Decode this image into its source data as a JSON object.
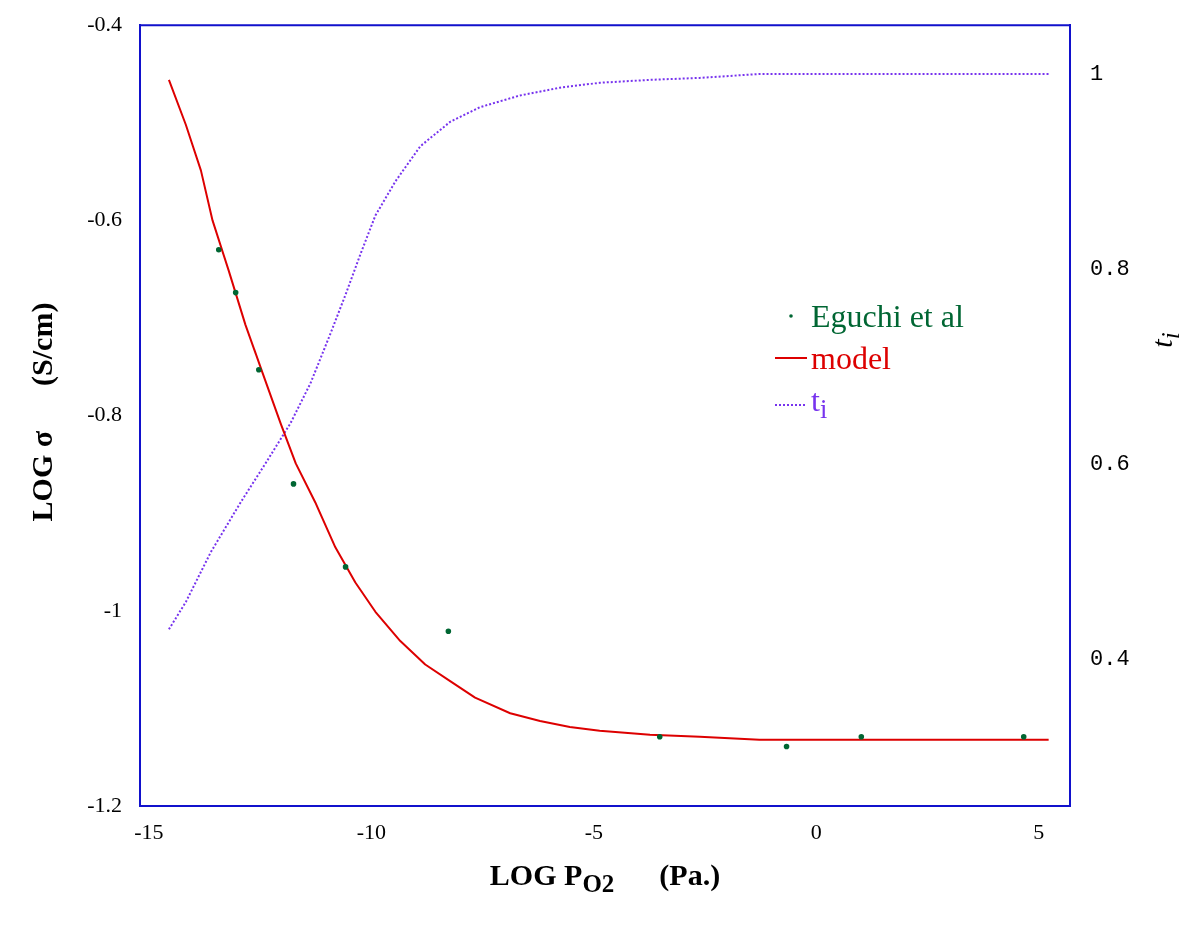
{
  "chart_data": {
    "type": "line",
    "xlabel": "LOG P$_{O2}$      (Pa.)",
    "ylabel": "LOG σ      (S/cm)",
    "y2label": "t$_{i}$",
    "xlim": [
      -15.2,
      5.7
    ],
    "xticks": [
      -15,
      -10,
      -5,
      0,
      5
    ],
    "ylim": [
      -1.2,
      -0.4
    ],
    "yticks": [
      -1.2,
      -1,
      -0.8,
      -0.6,
      -0.4
    ],
    "y2lim": [
      0.25,
      1.05
    ],
    "y2ticks": [
      0.4,
      0.6,
      0.8,
      1
    ],
    "grid": false,
    "legend": "right",
    "series": [
      {
        "name": "Eguchi et al",
        "type": "scatter",
        "marker": "circle",
        "color": "#006633",
        "x": [
          -13.43,
          -13.05,
          -12.53,
          -11.75,
          -10.58,
          -8.27,
          -3.52,
          -0.67,
          1.01,
          4.66
        ],
        "values": [
          -0.63,
          -0.674,
          -0.753,
          -0.87,
          -0.955,
          -1.021,
          -1.129,
          -1.139,
          -1.129,
          -1.129
        ]
      },
      {
        "name": "model",
        "type": "line",
        "line_style": "solid",
        "color": "#dd0000",
        "x": [
          -14.55,
          -14.17,
          -13.83,
          -13.57,
          -13.21,
          -12.83,
          -12.44,
          -12.04,
          -11.7,
          -11.26,
          -10.81,
          -10.36,
          -9.91,
          -9.35,
          -8.79,
          -8.23,
          -7.67,
          -6.88,
          -6.21,
          -5.54,
          -4.87,
          -3.74,
          -2.62,
          -1.28,
          5.22
        ],
        "values": [
          -0.456,
          -0.502,
          -0.549,
          -0.6,
          -0.651,
          -0.707,
          -0.757,
          -0.808,
          -0.849,
          -0.889,
          -0.935,
          -0.971,
          -1.001,
          -1.031,
          -1.055,
          -1.072,
          -1.089,
          -1.105,
          -1.113,
          -1.119,
          -1.123,
          -1.127,
          -1.129,
          -1.132,
          -1.132
        ]
      },
      {
        "name": "t$_{i}$",
        "type": "line",
        "axis": "y2",
        "line_style": "dotted",
        "color": "#7733ee",
        "x": [
          -14.55,
          -14.17,
          -13.61,
          -12.94,
          -12.38,
          -11.82,
          -11.37,
          -10.92,
          -10.58,
          -10.25,
          -9.91,
          -9.46,
          -8.9,
          -8.23,
          -7.56,
          -6.66,
          -5.76,
          -4.87,
          -3.74,
          -2.62,
          -1.28,
          5.22
        ],
        "values": [
          0.431,
          0.459,
          0.51,
          0.561,
          0.601,
          0.642,
          0.683,
          0.734,
          0.774,
          0.815,
          0.855,
          0.89,
          0.926,
          0.951,
          0.966,
          0.978,
          0.986,
          0.991,
          0.994,
          0.996,
          1,
          1
        ]
      }
    ]
  }
}
